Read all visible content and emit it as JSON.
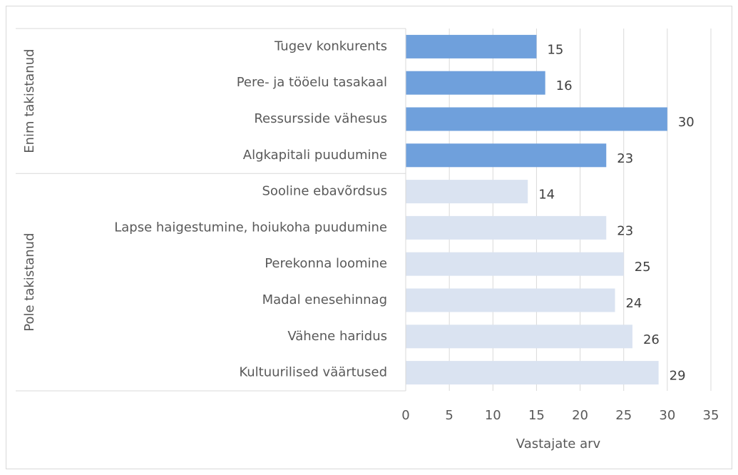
{
  "chart_data": {
    "type": "bar",
    "orientation": "horizontal",
    "x_label": "Vastajate arv",
    "xlim": [
      0,
      35
    ],
    "xticks": [
      0,
      5,
      10,
      15,
      20,
      25,
      30,
      35
    ],
    "grid": true,
    "series": [
      {
        "name": "Enim takistanud",
        "color": "#6fa0dc",
        "categories": [
          "Tugev konkurents",
          "Pere- ja tööelu tasakaal",
          "Ressursside vähesus",
          "Algkapitali puudumine"
        ],
        "values": [
          15,
          16,
          30,
          23
        ]
      },
      {
        "name": "Pole takistanud",
        "color": "#dae3f1",
        "categories": [
          "Sooline ebavõrdsus",
          "Lapse haigestumine, hoiukoha puudumine",
          "Perekonna loomine",
          "Madal enesehinnag",
          "Vähene haridus",
          "Kultuurilised väärtused"
        ],
        "values": [
          14,
          23,
          25,
          24,
          26,
          29
        ]
      }
    ]
  }
}
